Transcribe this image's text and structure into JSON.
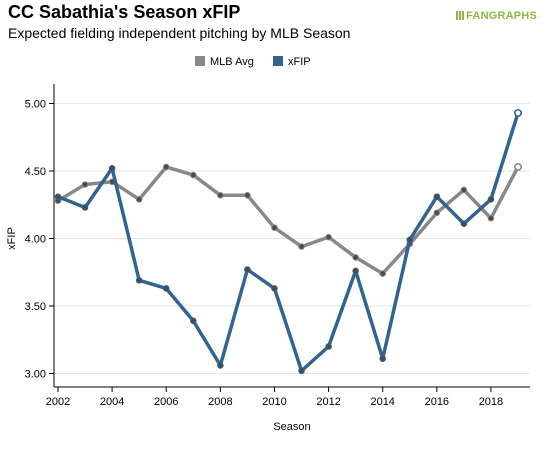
{
  "header": {
    "title": "CC Sabathia's Season xFIP",
    "subtitle": "Expected fielding independent pitching by MLB Season",
    "logo_text": "FANGRAPHS"
  },
  "chart_data": {
    "type": "line",
    "xlabel": "Season",
    "ylabel": "xFIP",
    "xlim": [
      2002,
      2019
    ],
    "ylim": [
      2.9,
      5.1
    ],
    "x_ticks": [
      "2002",
      "2004",
      "2006",
      "2008",
      "2010",
      "2012",
      "2014",
      "2016",
      "2018"
    ],
    "y_ticks": [
      "3.00",
      "3.50",
      "4.00",
      "4.50",
      "5.00"
    ],
    "grid": "horizontal",
    "legend_position": "top-center",
    "series": [
      {
        "name": "MLB Avg",
        "color": "#888888",
        "x": [
          2002,
          2003,
          2004,
          2005,
          2006,
          2007,
          2008,
          2009,
          2010,
          2011,
          2012,
          2013,
          2014,
          2015,
          2016,
          2017,
          2018,
          2019
        ],
        "values": [
          4.28,
          4.4,
          4.42,
          4.29,
          4.53,
          4.47,
          4.32,
          4.32,
          4.08,
          3.94,
          4.01,
          3.86,
          3.74,
          3.96,
          4.19,
          4.36,
          4.15,
          4.53
        ]
      },
      {
        "name": "xFIP",
        "color": "#33638f",
        "x": [
          2002,
          2003,
          2004,
          2005,
          2006,
          2007,
          2008,
          2009,
          2010,
          2011,
          2012,
          2013,
          2014,
          2015,
          2016,
          2017,
          2018,
          2019
        ],
        "values": [
          4.31,
          4.23,
          4.52,
          3.69,
          3.63,
          3.39,
          3.06,
          3.77,
          3.63,
          3.02,
          3.2,
          3.76,
          3.11,
          3.99,
          4.31,
          4.11,
          4.29,
          4.93
        ]
      }
    ]
  }
}
